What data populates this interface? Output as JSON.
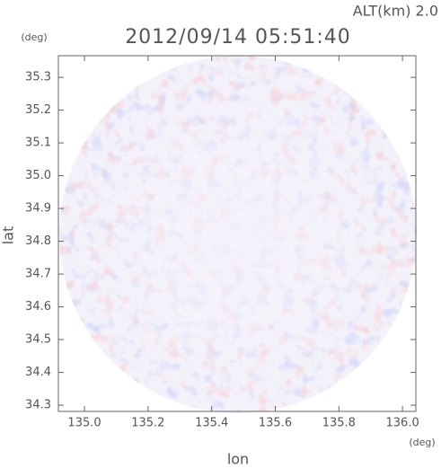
{
  "chart_data": {
    "type": "image",
    "title": "2012/09/14 05:51:40",
    "altitude": "ALT(km) 2.0",
    "x_label": "lon",
    "x_unit": "(deg)",
    "y_label": "lat",
    "y_unit": "(deg)",
    "xlim": [
      134.918,
      136.042
    ],
    "ylim": [
      34.281,
      35.366
    ],
    "xticks": [
      {
        "value": 135.0,
        "label": "135.0"
      },
      135.2,
      135.4,
      135.6,
      135.8,
      {
        "value": 136.0,
        "label": "136.0"
      }
    ],
    "yticks": [
      34.3,
      34.4,
      34.5,
      34.6,
      34.7,
      34.8,
      34.9,
      {
        "value": 35.0,
        "label": "35.0"
      },
      35.1,
      35.2,
      35.3
    ]
  }
}
